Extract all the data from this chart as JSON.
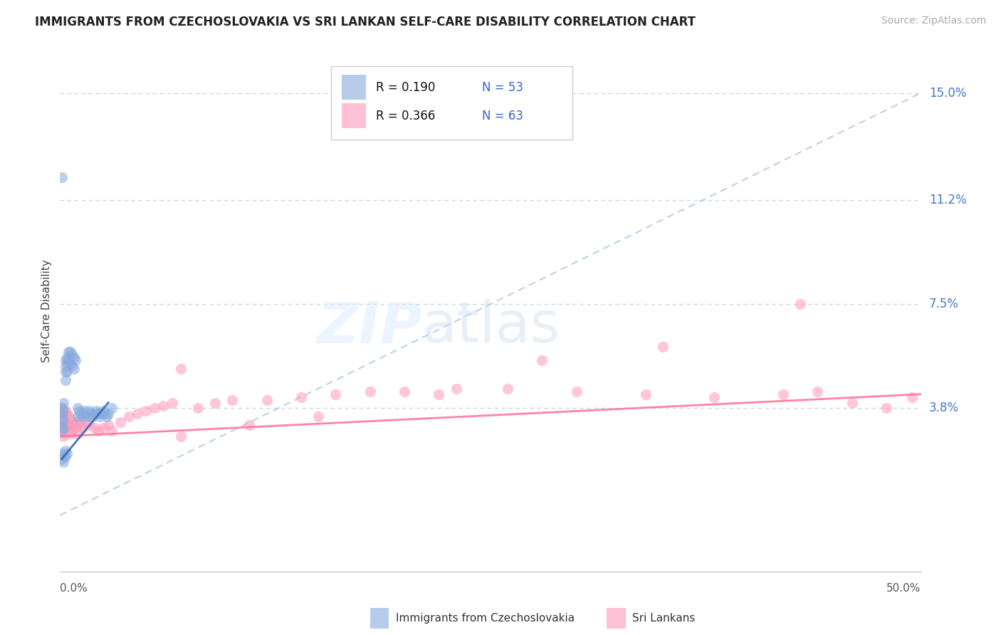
{
  "title": "IMMIGRANTS FROM CZECHOSLOVAKIA VS SRI LANKAN SELF-CARE DISABILITY CORRELATION CHART",
  "source": "Source: ZipAtlas.com",
  "ylabel": "Self-Care Disability",
  "ytick_labels": [
    "3.8%",
    "7.5%",
    "11.2%",
    "15.0%"
  ],
  "ytick_values": [
    0.038,
    0.075,
    0.112,
    0.15
  ],
  "xlim": [
    0.0,
    0.5
  ],
  "ylim": [
    -0.02,
    0.165
  ],
  "legend_1_r": "0.190",
  "legend_1_n": "53",
  "legend_2_r": "0.366",
  "legend_2_n": "63",
  "color_blue": "#88AADD",
  "color_pink": "#FF99BB",
  "color_trend_blue_solid": "#3366BB",
  "color_trend_blue_dashed": "#99BBDD",
  "color_trend_pink": "#FF7799",
  "blue_scatter_x": [
    0.001,
    0.001,
    0.001,
    0.001,
    0.001,
    0.002,
    0.002,
    0.002,
    0.002,
    0.003,
    0.003,
    0.003,
    0.003,
    0.004,
    0.004,
    0.004,
    0.005,
    0.005,
    0.006,
    0.006,
    0.007,
    0.007,
    0.008,
    0.008,
    0.009,
    0.01,
    0.01,
    0.011,
    0.012,
    0.013,
    0.014,
    0.015,
    0.016,
    0.017,
    0.018,
    0.019,
    0.02,
    0.021,
    0.022,
    0.023,
    0.024,
    0.025,
    0.026,
    0.027,
    0.028,
    0.001,
    0.001,
    0.002,
    0.002,
    0.003,
    0.003,
    0.004,
    0.03
  ],
  "blue_scatter_y": [
    0.12,
    0.038,
    0.036,
    0.033,
    0.03,
    0.04,
    0.037,
    0.034,
    0.031,
    0.055,
    0.053,
    0.051,
    0.048,
    0.056,
    0.054,
    0.051,
    0.058,
    0.055,
    0.058,
    0.054,
    0.057,
    0.053,
    0.056,
    0.052,
    0.055,
    0.038,
    0.035,
    0.037,
    0.036,
    0.035,
    0.037,
    0.036,
    0.035,
    0.037,
    0.036,
    0.035,
    0.036,
    0.037,
    0.036,
    0.035,
    0.036,
    0.037,
    0.036,
    0.035,
    0.036,
    0.022,
    0.02,
    0.021,
    0.019,
    0.023,
    0.021,
    0.022,
    0.038
  ],
  "pink_scatter_x": [
    0.001,
    0.001,
    0.001,
    0.002,
    0.002,
    0.002,
    0.003,
    0.003,
    0.003,
    0.004,
    0.004,
    0.005,
    0.005,
    0.006,
    0.006,
    0.007,
    0.007,
    0.008,
    0.009,
    0.01,
    0.01,
    0.012,
    0.013,
    0.015,
    0.017,
    0.02,
    0.022,
    0.025,
    0.028,
    0.03,
    0.035,
    0.04,
    0.045,
    0.05,
    0.055,
    0.06,
    0.065,
    0.07,
    0.08,
    0.09,
    0.1,
    0.12,
    0.14,
    0.16,
    0.18,
    0.2,
    0.23,
    0.26,
    0.3,
    0.34,
    0.38,
    0.42,
    0.44,
    0.46,
    0.48,
    0.495,
    0.35,
    0.28,
    0.22,
    0.15,
    0.11,
    0.07,
    0.43
  ],
  "pink_scatter_y": [
    0.038,
    0.034,
    0.03,
    0.036,
    0.032,
    0.028,
    0.037,
    0.033,
    0.029,
    0.036,
    0.032,
    0.035,
    0.031,
    0.034,
    0.03,
    0.033,
    0.029,
    0.032,
    0.031,
    0.033,
    0.029,
    0.032,
    0.031,
    0.033,
    0.032,
    0.031,
    0.03,
    0.031,
    0.032,
    0.03,
    0.033,
    0.035,
    0.036,
    0.037,
    0.038,
    0.039,
    0.04,
    0.052,
    0.038,
    0.04,
    0.041,
    0.041,
    0.042,
    0.043,
    0.044,
    0.044,
    0.045,
    0.045,
    0.044,
    0.043,
    0.042,
    0.043,
    0.044,
    0.04,
    0.038,
    0.042,
    0.06,
    0.055,
    0.043,
    0.035,
    0.032,
    0.028,
    0.075
  ],
  "blue_solid_trend_x": [
    0.001,
    0.028
  ],
  "blue_solid_trend_y": [
    0.02,
    0.04
  ],
  "blue_dashed_trend_x": [
    0.0,
    0.5
  ],
  "blue_dashed_trend_y": [
    0.0,
    0.15
  ],
  "pink_trend_x": [
    0.0,
    0.5
  ],
  "pink_trend_y": [
    0.028,
    0.043
  ]
}
